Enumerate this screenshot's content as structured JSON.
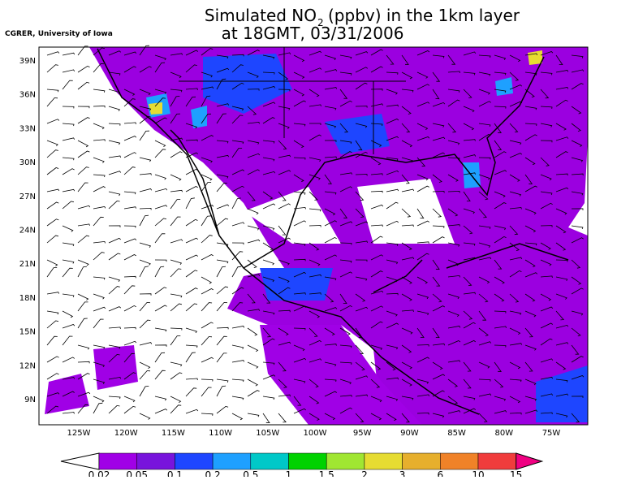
{
  "header": {
    "title_prefix": "Simulated NO",
    "title_subscript": "2",
    "title_suffix": "(ppbv) in the 1km layer",
    "title_line2": "at 18GMT, 03/31/2006",
    "credit": "CGRER, University of Iowa"
  },
  "map": {
    "lat_labels": [
      "39N",
      "36N",
      "33N",
      "30N",
      "27N",
      "24N",
      "21N",
      "18N",
      "15N",
      "12N",
      "9N"
    ],
    "lon_labels": [
      "125W",
      "120W",
      "115W",
      "110W",
      "105W",
      "100W",
      "95W",
      "90W",
      "85W",
      "80W",
      "75W"
    ]
  },
  "colorbar": {
    "labels": [
      "0.02",
      "0.05",
      "0.1",
      "0.2",
      "0.5",
      "1",
      "1.5",
      "2",
      "3",
      "6",
      "10",
      "15"
    ],
    "colors": [
      "#ffffff",
      "#a000e6",
      "#7814dc",
      "#1e46ff",
      "#1ea0ff",
      "#00c8c8",
      "#00d200",
      "#a0e632",
      "#e6dc32",
      "#e6af2d",
      "#f08228",
      "#f03c3c",
      "#f00082"
    ]
  }
}
